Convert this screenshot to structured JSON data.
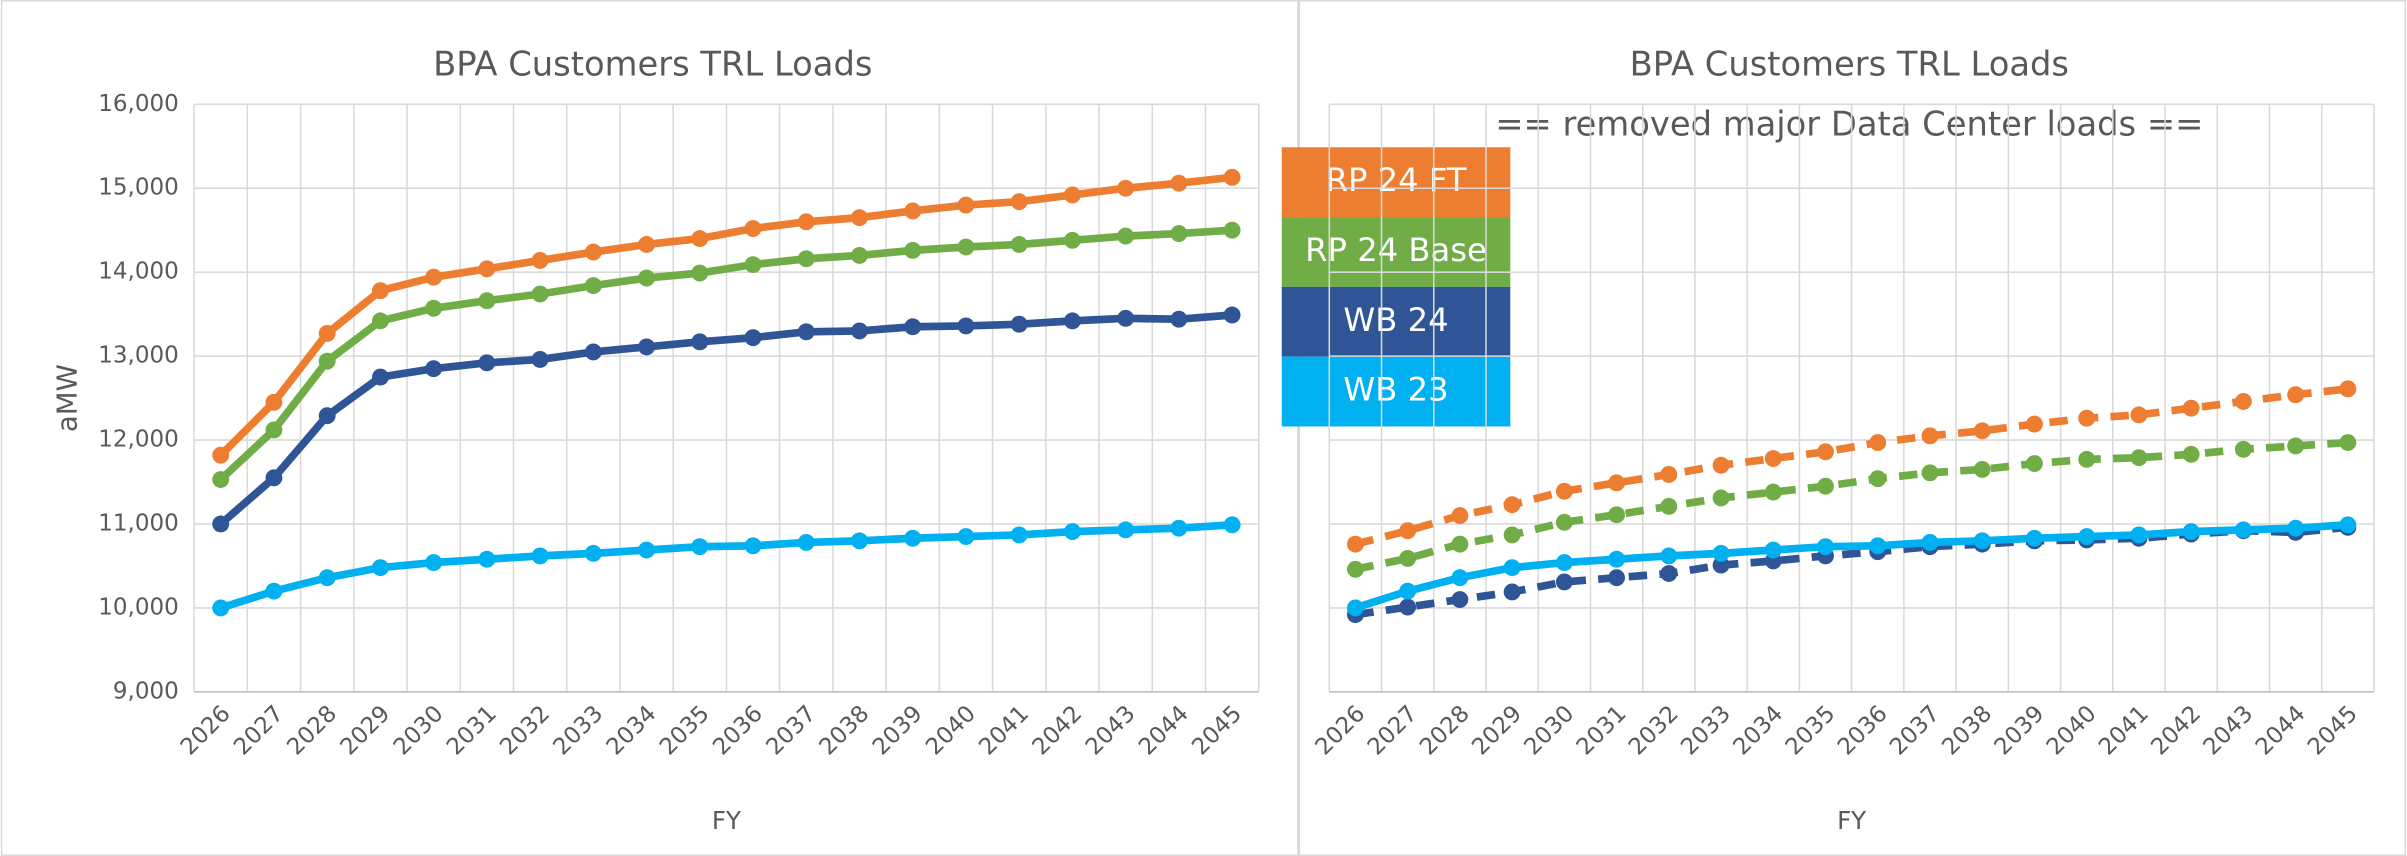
{
  "chart_data": [
    {
      "type": "line",
      "title": "BPA Customers TRL Loads",
      "x_label": "FY",
      "y_label": "aMW",
      "categories": [
        "2026",
        "2027",
        "2028",
        "2029",
        "2030",
        "2031",
        "2032",
        "2033",
        "2034",
        "2035",
        "2036",
        "2037",
        "2038",
        "2039",
        "2040",
        "2041",
        "2042",
        "2043",
        "2044",
        "2045"
      ],
      "ylim": [
        9000,
        16000
      ],
      "yticks": [
        {
          "value": 9000,
          "label": "9,000"
        },
        {
          "value": 10000,
          "label": "10,000"
        },
        {
          "value": 11000,
          "label": "11,000"
        },
        {
          "value": 12000,
          "label": "12,000"
        },
        {
          "value": 13000,
          "label": "13,000"
        },
        {
          "value": 14000,
          "label": "14,000"
        },
        {
          "value": 15000,
          "label": "15,000"
        },
        {
          "value": 16000,
          "label": "16,000"
        }
      ],
      "grid": true,
      "legend": "right",
      "series": [
        {
          "name": "RP 24 FT",
          "color": "#ed7d31",
          "values": [
            11820,
            12450,
            13270,
            13780,
            13940,
            14040,
            14140,
            14240,
            14330,
            14400,
            14520,
            14600,
            14650,
            14730,
            14800,
            14840,
            14920,
            15000,
            15060,
            15130
          ]
        },
        {
          "name": "RP 24 Base",
          "color": "#70ad47",
          "values": [
            11530,
            12120,
            12940,
            13420,
            13570,
            13660,
            13740,
            13840,
            13930,
            13990,
            14090,
            14160,
            14200,
            14260,
            14300,
            14330,
            14380,
            14430,
            14460,
            14500
          ]
        },
        {
          "name": "WB 24",
          "color": "#2f5597",
          "values": [
            11000,
            11550,
            12290,
            12750,
            12850,
            12920,
            12960,
            13050,
            13110,
            13170,
            13220,
            13290,
            13300,
            13350,
            13360,
            13380,
            13420,
            13450,
            13440,
            13490
          ]
        },
        {
          "name": "WB 23",
          "color": "#00b0f0",
          "values": [
            10000,
            10200,
            10360,
            10480,
            10540,
            10580,
            10620,
            10650,
            10690,
            10730,
            10740,
            10780,
            10800,
            10830,
            10850,
            10870,
            10910,
            10930,
            10950,
            10990
          ]
        }
      ]
    },
    {
      "type": "line",
      "title": "BPA Customers TRL Loads",
      "subtitle": "== removed major Data Center loads ==",
      "x_label": "FY",
      "categories": [
        "2026",
        "2027",
        "2028",
        "2029",
        "2030",
        "2031",
        "2032",
        "2033",
        "2034",
        "2035",
        "2036",
        "2037",
        "2038",
        "2039",
        "2040",
        "2041",
        "2042",
        "2043",
        "2044",
        "2045"
      ],
      "ylim": [
        9000,
        16000
      ],
      "yticks": [
        9000,
        10000,
        11000,
        12000,
        13000,
        14000,
        15000,
        16000
      ],
      "grid": true,
      "show_ytick_labels": false,
      "series": [
        {
          "color": "#ed7d31",
          "dashed": true,
          "values": [
            10760,
            10920,
            11100,
            11230,
            11390,
            11490,
            11590,
            11700,
            11780,
            11860,
            11970,
            12050,
            12110,
            12190,
            12260,
            12300,
            12380,
            12460,
            12540,
            12610
          ]
        },
        {
          "color": "#70ad47",
          "dashed": true,
          "values": [
            10460,
            10590,
            10760,
            10870,
            11020,
            11110,
            11210,
            11310,
            11380,
            11450,
            11540,
            11610,
            11650,
            11720,
            11770,
            11790,
            11830,
            11890,
            11930,
            11970
          ]
        },
        {
          "color": "#2f5597",
          "dashed": true,
          "values": [
            9920,
            10010,
            10100,
            10190,
            10310,
            10360,
            10410,
            10510,
            10560,
            10620,
            10670,
            10730,
            10760,
            10800,
            10810,
            10830,
            10880,
            10920,
            10900,
            10960
          ]
        },
        {
          "color": "#00b0f0",
          "dashed": false,
          "values": [
            10000,
            10200,
            10360,
            10480,
            10540,
            10580,
            10620,
            10650,
            10690,
            10730,
            10740,
            10780,
            10800,
            10830,
            10850,
            10870,
            10910,
            10930,
            10950,
            10990
          ]
        }
      ]
    }
  ]
}
